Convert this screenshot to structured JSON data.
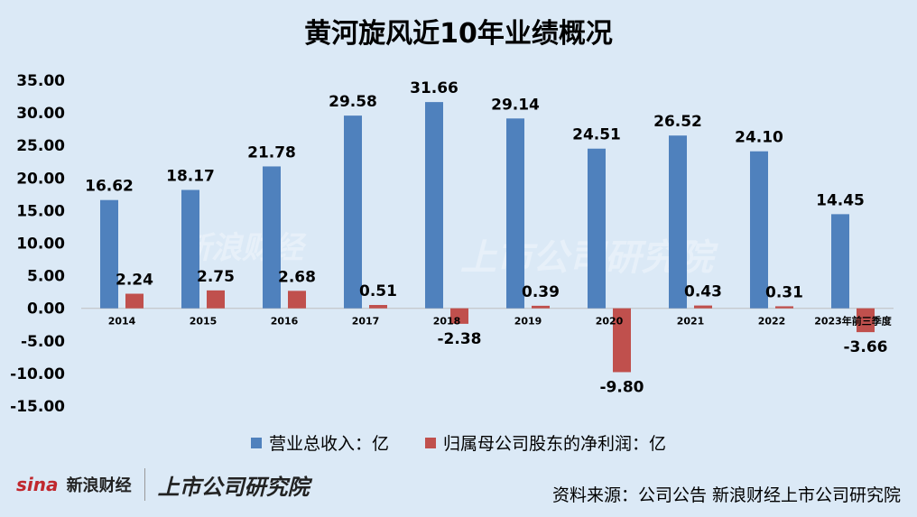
{
  "title": "黄河旋风近10年业绩概况",
  "chart_data": {
    "type": "bar",
    "categories": [
      "2014",
      "2015",
      "2016",
      "2017",
      "2018",
      "2019",
      "2020",
      "2021",
      "2022",
      "2023年前三季度"
    ],
    "series": [
      {
        "name": "营业总收入：亿",
        "color": "#4f81bd",
        "values": [
          16.62,
          18.17,
          21.78,
          29.58,
          31.66,
          29.14,
          24.51,
          26.52,
          24.1,
          14.45
        ]
      },
      {
        "name": "归属母公司股东的净利润：亿",
        "color": "#c0504d",
        "values": [
          2.24,
          2.75,
          2.68,
          0.51,
          -2.38,
          0.39,
          -9.8,
          0.43,
          0.31,
          -3.66
        ]
      }
    ],
    "ylim": [
      -15,
      35
    ],
    "yticks": [
      "35.00",
      "30.00",
      "25.00",
      "20.00",
      "15.00",
      "10.00",
      "5.00",
      "0.00",
      "-5.00",
      "-10.00",
      "-15.00"
    ],
    "data_labels": [
      [
        "16.62",
        "18.17",
        "21.78",
        "29.58",
        "31.66",
        "29.14",
        "24.51",
        "26.52",
        "24.10",
        "14.45"
      ],
      [
        "2.24",
        "2.75",
        "2.68",
        "0.51",
        "-2.38",
        "0.39",
        "-9.80",
        "0.43",
        "0.31",
        "-3.66"
      ]
    ],
    "legend_position": "bottom"
  },
  "watermark": {
    "left": "新浪财经",
    "right": "上市公司研究院"
  },
  "footer": {
    "logo_sina": "sina",
    "logo_sina_cn": "新浪财经",
    "logo_ssyj": "上市公司研究院",
    "source": "资料来源：公司公告 新浪财经上市公司研究院"
  }
}
